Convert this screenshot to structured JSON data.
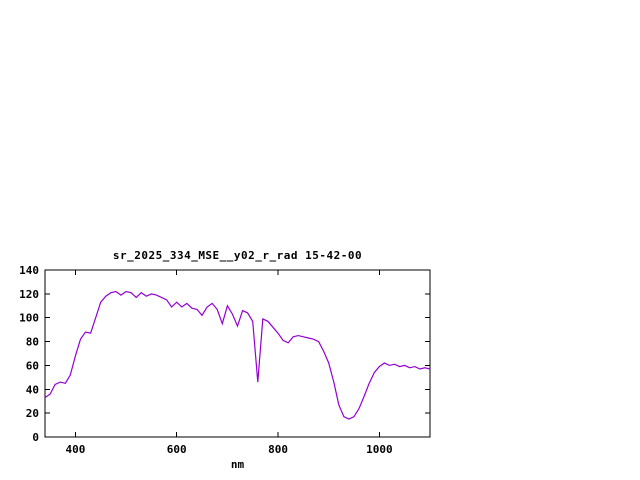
{
  "page": {
    "background": "#ffffff"
  },
  "chart_data": {
    "type": "line",
    "title": "sr_2025_334_MSE__y02_r_rad 15-42-00",
    "xlabel": "nm",
    "ylabel": "",
    "xlim": [
      340,
      1100
    ],
    "ylim": [
      0,
      140
    ],
    "xticks": [
      400,
      600,
      800,
      1000
    ],
    "yticks": [
      0,
      20,
      40,
      60,
      80,
      100,
      120,
      140
    ],
    "grid": false,
    "legend": "none",
    "line_color": "#9400d3",
    "axis_color": "#000000",
    "series": [
      {
        "name": "sr_2025_334_MSE__y02_r_rad",
        "x": [
          340,
          350,
          360,
          370,
          380,
          390,
          400,
          410,
          420,
          430,
          440,
          450,
          460,
          470,
          480,
          490,
          500,
          510,
          520,
          530,
          540,
          550,
          560,
          570,
          580,
          590,
          600,
          610,
          620,
          630,
          640,
          650,
          660,
          670,
          680,
          690,
          700,
          710,
          720,
          730,
          740,
          750,
          760,
          770,
          780,
          790,
          800,
          810,
          820,
          830,
          840,
          850,
          860,
          870,
          880,
          890,
          900,
          910,
          920,
          930,
          940,
          950,
          960,
          970,
          980,
          990,
          1000,
          1010,
          1020,
          1030,
          1040,
          1050,
          1060,
          1070,
          1080,
          1090,
          1100
        ],
        "values": [
          33,
          36,
          44,
          46,
          45,
          52,
          68,
          82,
          88,
          87,
          100,
          113,
          118,
          121,
          122,
          119,
          122,
          121,
          117,
          121,
          118,
          120,
          119,
          117,
          115,
          109,
          113,
          109,
          112,
          108,
          107,
          102,
          109,
          112,
          107,
          95,
          110,
          103,
          93,
          106,
          104,
          97,
          46,
          99,
          97,
          92,
          87,
          81,
          79,
          84,
          85,
          84,
          83,
          82,
          80,
          72,
          62,
          46,
          27,
          17,
          15,
          17,
          24,
          34,
          45,
          54,
          59,
          62,
          60,
          61,
          59,
          60,
          58,
          59,
          57,
          58,
          57
        ]
      }
    ]
  }
}
